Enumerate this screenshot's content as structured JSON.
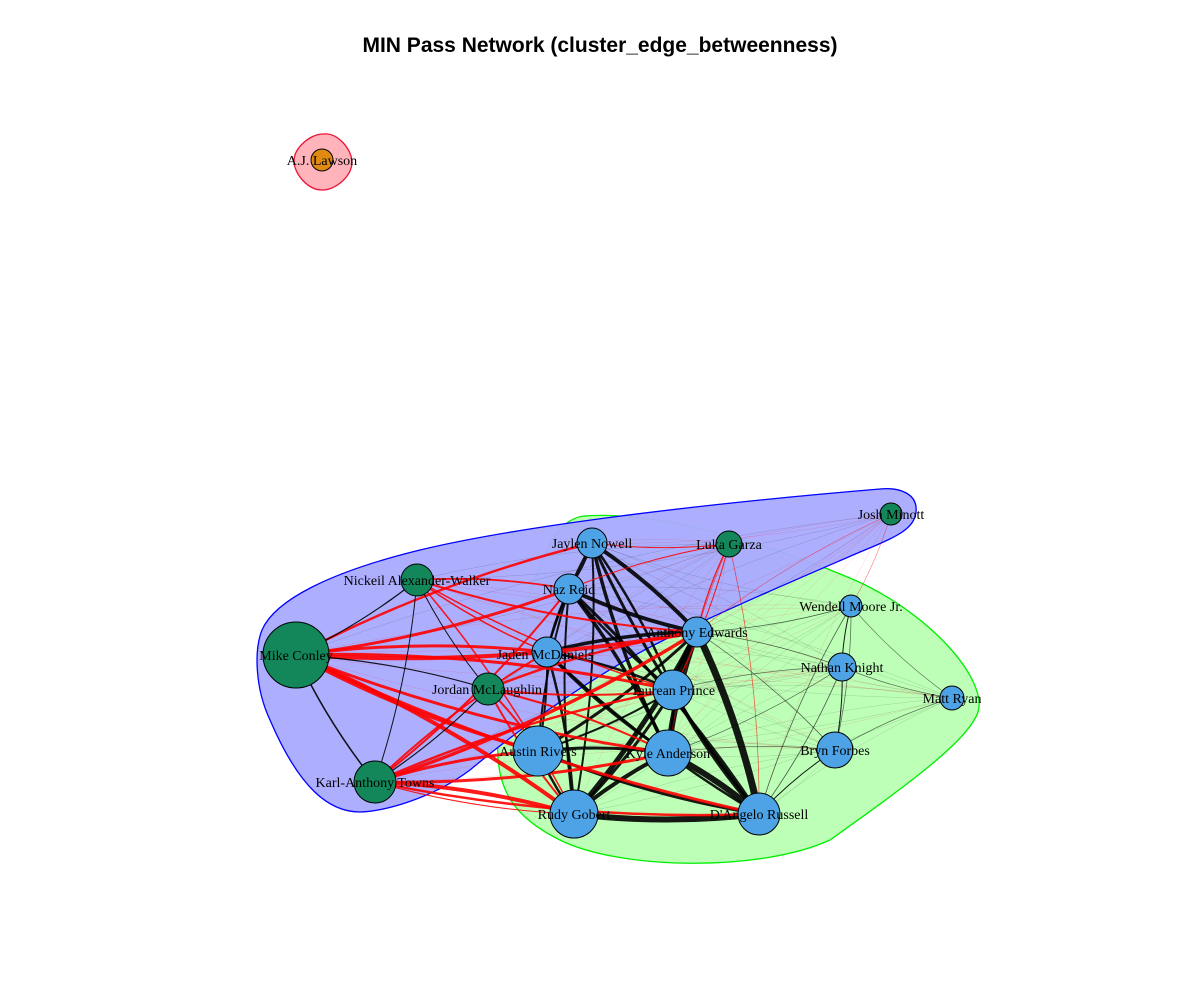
{
  "title": "MIN Pass Network (cluster_edge_betweenness)",
  "colors": {
    "cluster_blue_fill": "#aaaaff",
    "cluster_blue_stroke": "#0000ff",
    "cluster_green_fill": "#b7ffb0",
    "cluster_green_stroke": "#00ee00",
    "cluster_red_fill": "#ffb0b8",
    "cluster_red_stroke": "#ee1133",
    "node_blue": "#4da3e6",
    "node_green": "#13875a",
    "node_orange": "#e08a12",
    "edge_within": "#000000",
    "edge_between": "#ff0000"
  },
  "nodes": [
    {
      "id": "aj",
      "label": "A.J. Lawson",
      "cluster": "red"
    },
    {
      "id": "josh",
      "label": "Josh Minott",
      "cluster": "blue"
    },
    {
      "id": "jaylen",
      "label": "Jaylen Nowell",
      "cluster": "green"
    },
    {
      "id": "luka",
      "label": "Luka Garza",
      "cluster": "blue"
    },
    {
      "id": "nickeil",
      "label": "Nickeil Alexander-Walker",
      "cluster": "blue"
    },
    {
      "id": "naz",
      "label": "Naz Reid",
      "cluster": "green"
    },
    {
      "id": "wendell",
      "label": "Wendell Moore Jr.",
      "cluster": "green"
    },
    {
      "id": "anthony",
      "label": "Anthony Edwards",
      "cluster": "green"
    },
    {
      "id": "mike",
      "label": "Mike Conley",
      "cluster": "blue"
    },
    {
      "id": "jaden",
      "label": "Jaden McDaniels",
      "cluster": "green"
    },
    {
      "id": "nathan",
      "label": "Nathan Knight",
      "cluster": "green"
    },
    {
      "id": "jordan",
      "label": "Jordan McLaughlin",
      "cluster": "blue"
    },
    {
      "id": "taurean",
      "label": "Taurean Prince",
      "cluster": "green"
    },
    {
      "id": "matt",
      "label": "Matt Ryan",
      "cluster": "green"
    },
    {
      "id": "austin",
      "label": "Austin Rivers",
      "cluster": "green"
    },
    {
      "id": "kyle",
      "label": "Kyle Anderson",
      "cluster": "green"
    },
    {
      "id": "bryn",
      "label": "Bryn Forbes",
      "cluster": "green"
    },
    {
      "id": "kat",
      "label": "Karl-Anthony Towns",
      "cluster": "blue"
    },
    {
      "id": "rudy",
      "label": "Rudy Gobert",
      "cluster": "green"
    },
    {
      "id": "dangelo",
      "label": "D'Angelo Russell",
      "cluster": "green"
    }
  ]
}
